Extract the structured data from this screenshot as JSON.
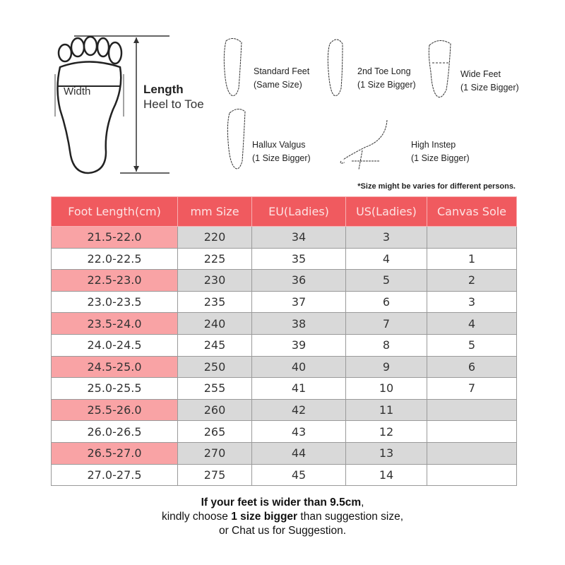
{
  "diagram": {
    "width_label": "Width",
    "length_label": "Length",
    "length_sub": "Heel to Toe",
    "foot_types": [
      {
        "name": "Standard Feet",
        "note": "(Same Size)"
      },
      {
        "name": "2nd Toe Long",
        "note": "(1 Size Bigger)"
      },
      {
        "name": "Wide Feet",
        "note": "(1 Size Bigger)"
      },
      {
        "name": "Hallux Valgus",
        "note": "(1 Size Bigger)"
      },
      {
        "name": "High Instep",
        "note": "(1 Size Bigger)"
      }
    ]
  },
  "note": "*Size might be varies for different persons.",
  "table": {
    "headers": [
      "Foot Length(cm)",
      "mm Size",
      "EU(Ladies)",
      "US(Ladies)",
      "Canvas Sole"
    ],
    "rows": [
      [
        "21.5-22.0",
        "220",
        "34",
        "3",
        ""
      ],
      [
        "22.0-22.5",
        "225",
        "35",
        "4",
        "1"
      ],
      [
        "22.5-23.0",
        "230",
        "36",
        "5",
        "2"
      ],
      [
        "23.0-23.5",
        "235",
        "37",
        "6",
        "3"
      ],
      [
        "23.5-24.0",
        "240",
        "38",
        "7",
        "4"
      ],
      [
        "24.0-24.5",
        "245",
        "39",
        "8",
        "5"
      ],
      [
        "24.5-25.0",
        "250",
        "40",
        "9",
        "6"
      ],
      [
        "25.0-25.5",
        "255",
        "41",
        "10",
        "7"
      ],
      [
        "25.5-26.0",
        "260",
        "42",
        "11",
        ""
      ],
      [
        "26.0-26.5",
        "265",
        "43",
        "12",
        ""
      ],
      [
        "26.5-27.0",
        "270",
        "44",
        "13",
        ""
      ],
      [
        "27.0-27.5",
        "275",
        "45",
        "14",
        ""
      ]
    ],
    "colors": {
      "header": "#f05a5f",
      "highlight": "#f9a3a5",
      "shade": "#d9d9d9"
    }
  },
  "footer": {
    "line1": "If your feet is wider than 9.5cm",
    "line1_suffix": ",",
    "line2_prefix": "kindly choose ",
    "line2_bold": "1 size bigger",
    "line2_suffix": " than suggestion size,",
    "line3": "or Chat us for Suggestion."
  }
}
